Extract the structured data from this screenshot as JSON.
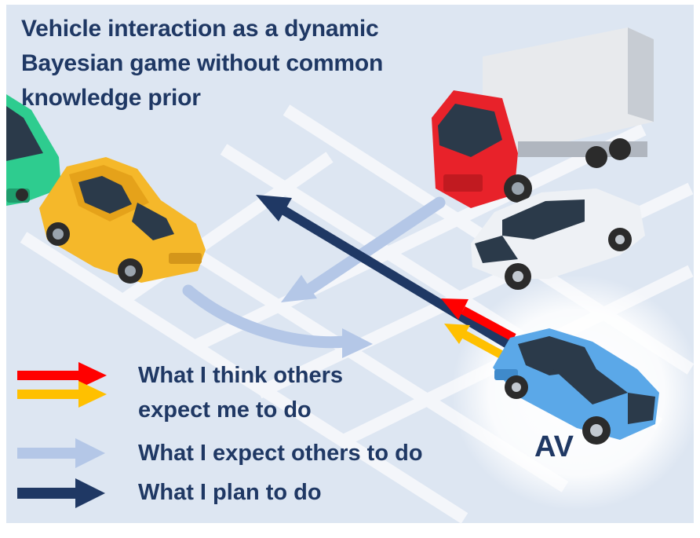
{
  "title": {
    "line1": "Vehicle interaction as a dynamic",
    "line2": "Bayesian game without common",
    "line3": "knowledge prior"
  },
  "legend": {
    "think_line1": "What I think others",
    "think_line2": "expect me to do",
    "expect": "What I expect others to do",
    "plan": "What I plan to do"
  },
  "av_label": "AV",
  "colors": {
    "background": "#dde6f2",
    "road": "#f4f6fa",
    "text": "#1f3864",
    "think_red": "#ff0000",
    "think_yellow": "#ffc000",
    "expect_light": "#b4c7e7",
    "plan_dark": "#1f3864"
  },
  "icons": [
    "truck-icon",
    "yellow-car-icon",
    "green-car-icon",
    "white-car-icon",
    "blue-av-car-icon"
  ]
}
